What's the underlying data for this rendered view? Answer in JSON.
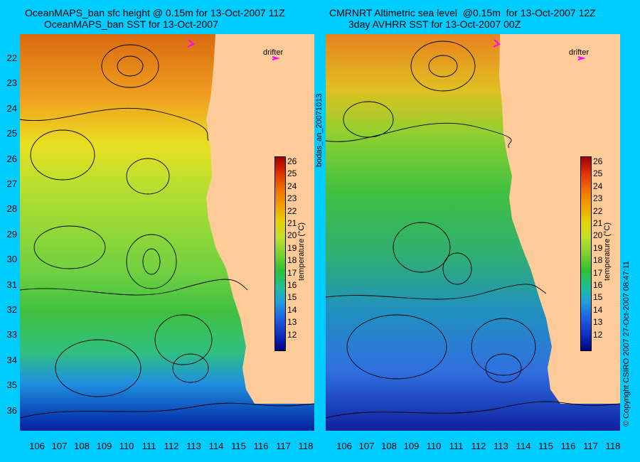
{
  "left_panel": {
    "title_line1": "OceanMAPS_ban sfc height @ 0.15m for 13-Oct-2007 11Z",
    "title_line2": "OceanMAPS_ban SST for 13-Oct-2007",
    "drifter_label": "drifter",
    "colorbar_label": "temperature (°C)"
  },
  "right_panel": {
    "title_line1": "CMRNRT Altimetric sea level  @0.15m  for 13-Oct-2007 12Z",
    "title_line2": "3day AVHRR SST for 13-Oct-2007 00Z",
    "drifter_label": "drifter",
    "colorbar_label": "temperature (°C)"
  },
  "side_labels": {
    "middle": "bodas_an_20071013",
    "right": "© Copyright CSIRO 2007   27-Oct-2007 08:47:11"
  },
  "lat_ticks": [
    "22",
    "23",
    "24",
    "25",
    "26",
    "27",
    "28",
    "29",
    "30",
    "31",
    "32",
    "33",
    "34",
    "35",
    "36"
  ],
  "lon_ticks": [
    "106",
    "107",
    "108",
    "109",
    "110",
    "111",
    "112",
    "113",
    "114",
    "115",
    "116",
    "117",
    "118"
  ],
  "colorbar_ticks": [
    "26",
    "25",
    "24",
    "23",
    "22",
    "21",
    "20",
    "19",
    "18",
    "17",
    "16",
    "15",
    "14",
    "13",
    "12"
  ],
  "colors": {
    "background": "#00ccff",
    "land": "#ffcc99",
    "drifter_marker": "#ff00ff"
  }
}
